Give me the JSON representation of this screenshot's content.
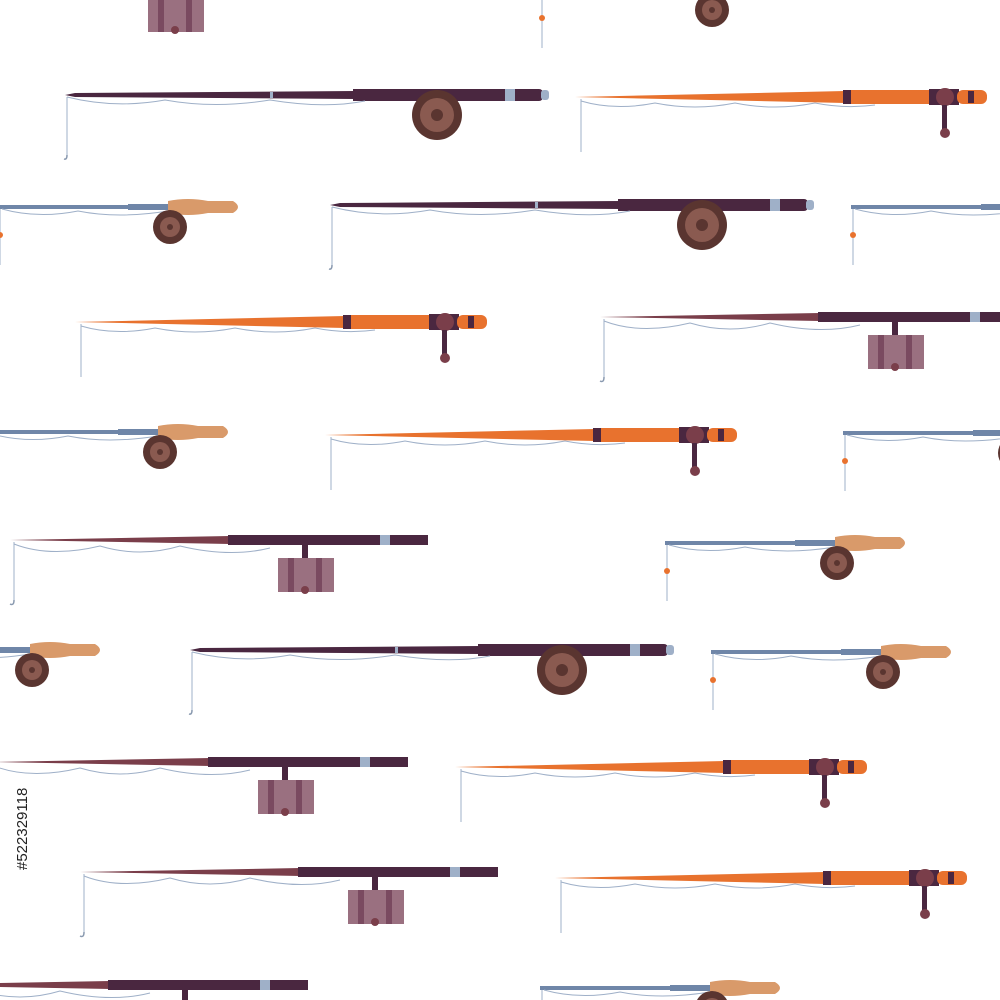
{
  "watermark_id": "#522329118"
}
